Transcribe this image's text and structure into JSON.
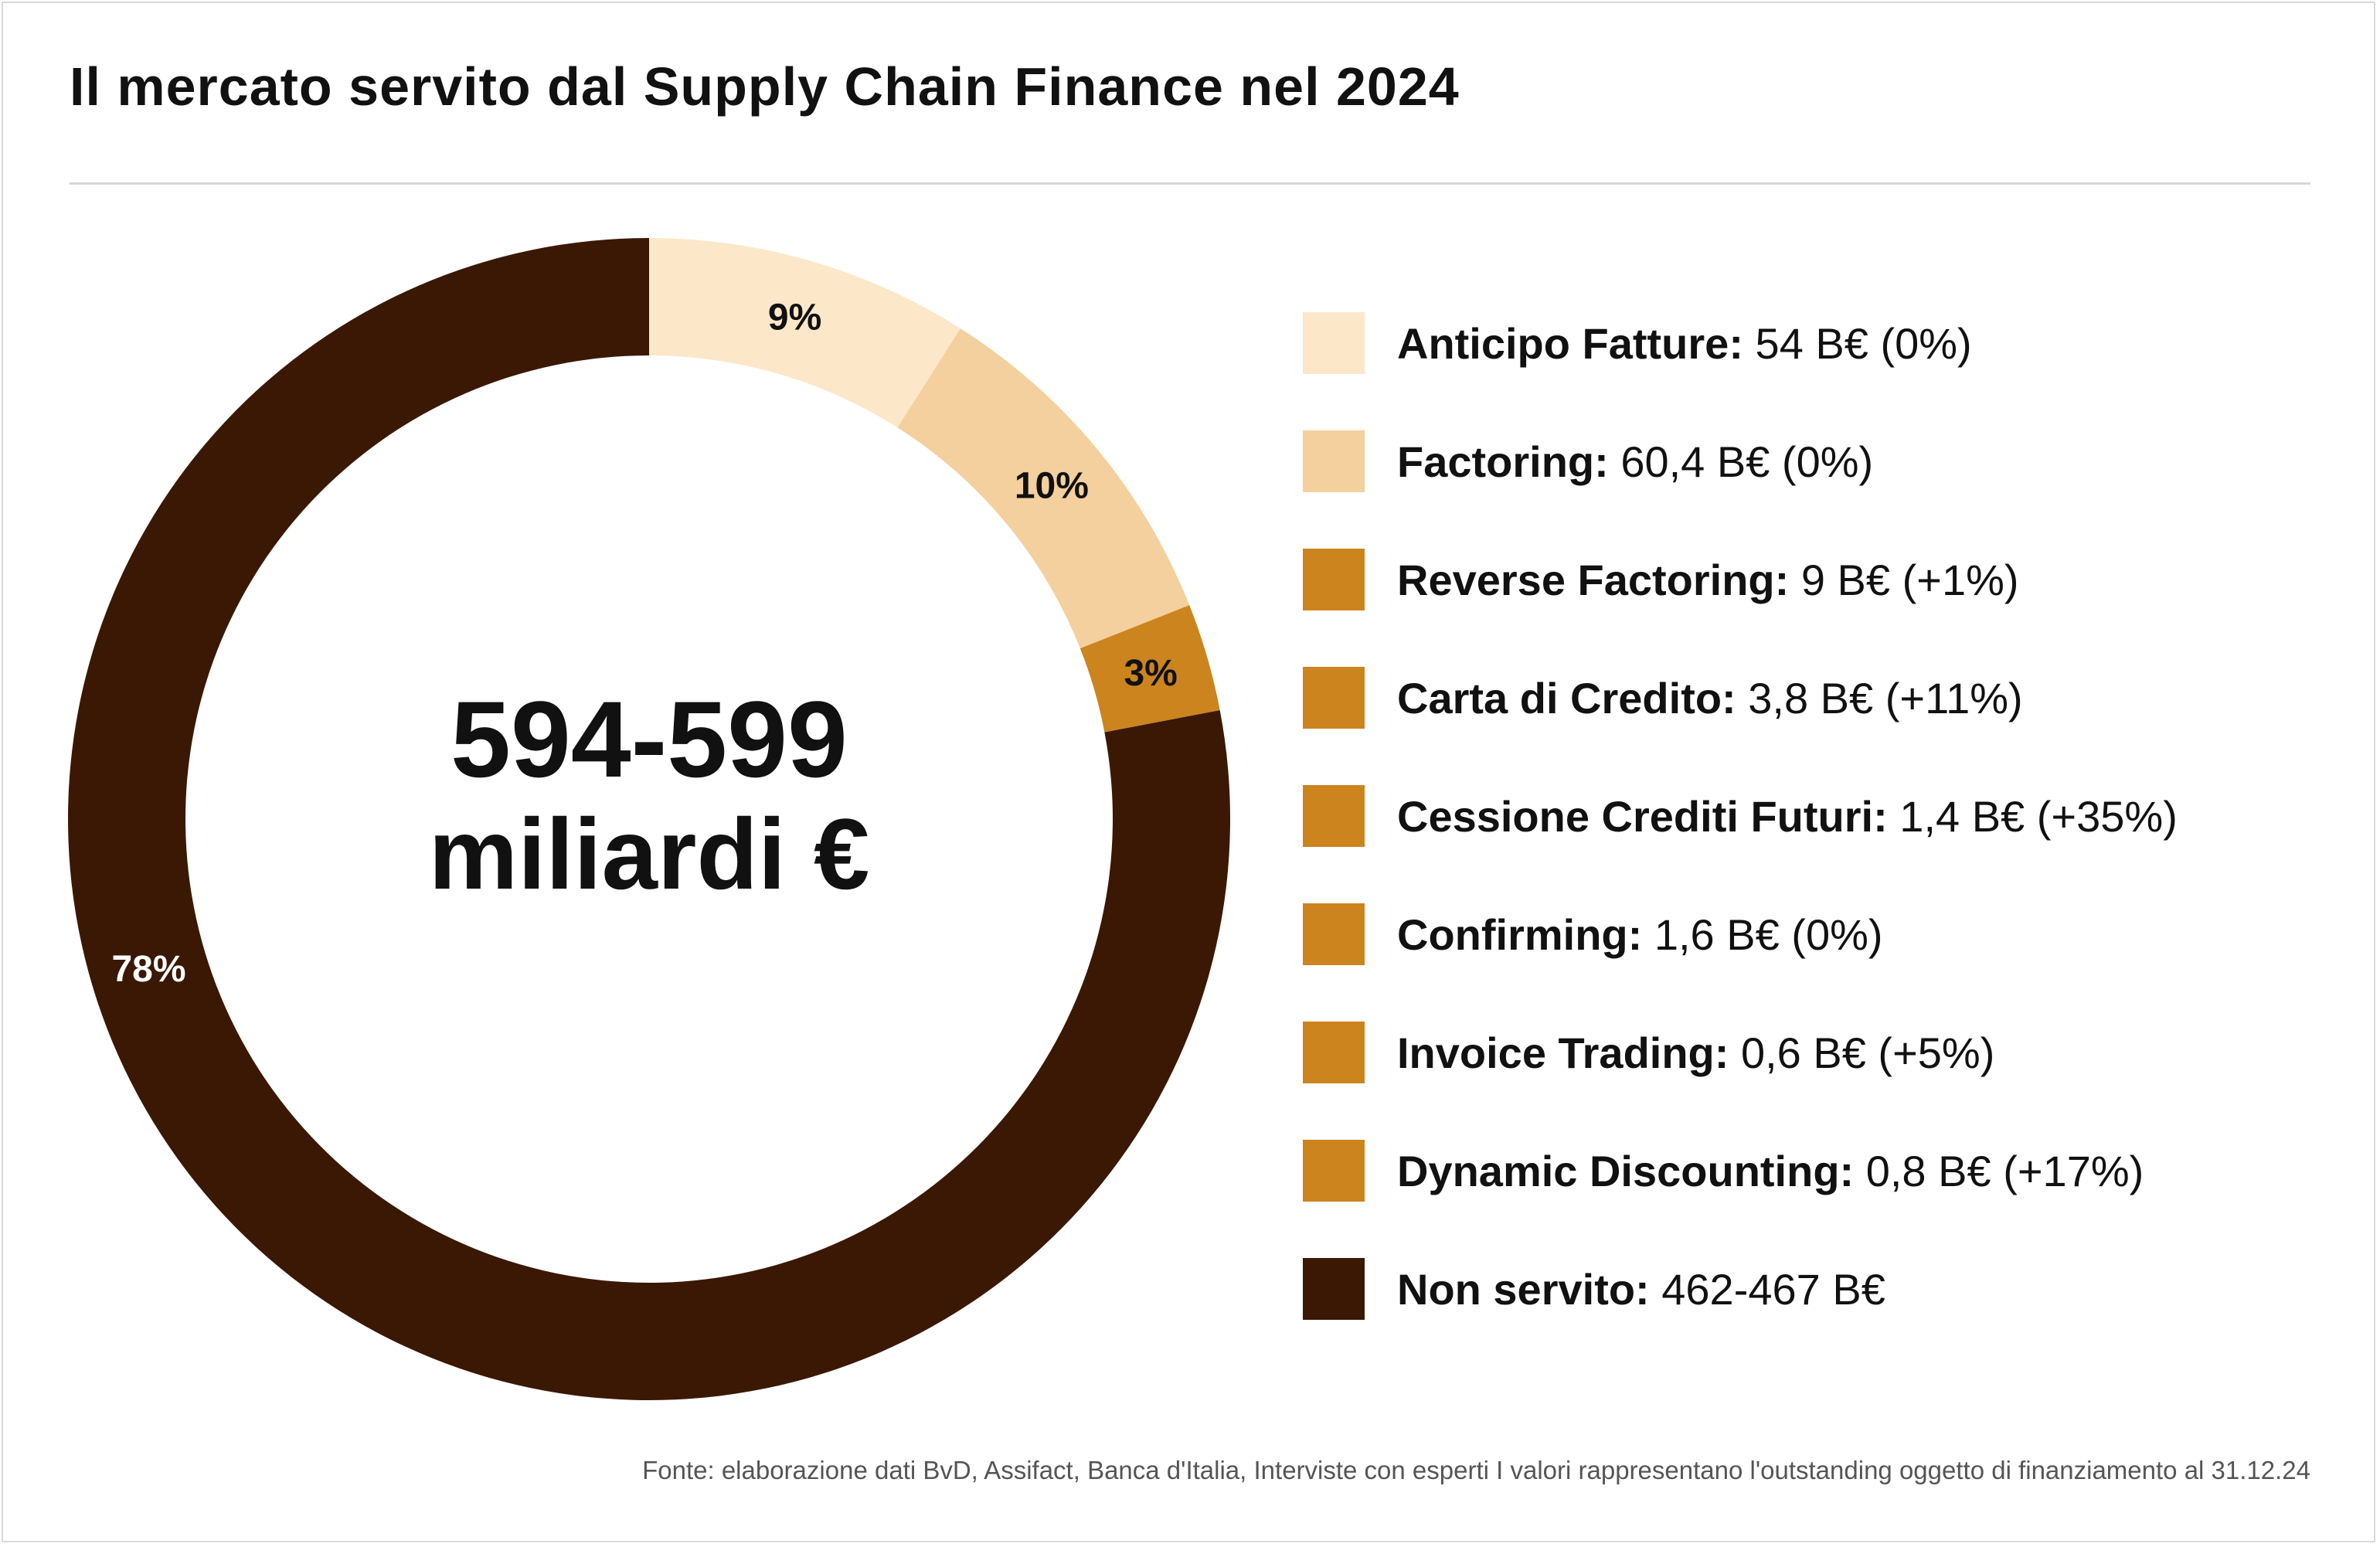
{
  "chart_data": {
    "type": "pie",
    "title": "Il mercato servito dal Supply Chain Finance nel 2024",
    "center_value": "594-599",
    "center_unit": "miliardi €",
    "slices": [
      {
        "label": "9%",
        "percent": 9,
        "color": "#fce7c9"
      },
      {
        "label": "10%",
        "percent": 10,
        "color": "#f3d09d"
      },
      {
        "label": "3%",
        "percent": 3,
        "color": "#cc841e"
      },
      {
        "label": "78%",
        "percent": 78,
        "color": "#3a1804"
      }
    ],
    "legend": [
      {
        "name": "Anticipo Fatture:",
        "value": " 54 B€ (0%)",
        "color": "#fce7c9"
      },
      {
        "name": "Factoring:",
        "value": " 60,4 B€ (0%)",
        "color": "#f3d09d"
      },
      {
        "name": "Reverse Factoring:",
        "value": " 9 B€ (+1%)",
        "color": "#cc841e"
      },
      {
        "name": "Carta di Credito:",
        "value": " 3,8 B€ (+11%)",
        "color": "#cc841e"
      },
      {
        "name": "Cessione Crediti Futuri:",
        "value": " 1,4 B€ (+35%)",
        "color": "#cc841e"
      },
      {
        "name": "Confirming:",
        "value": " 1,6 B€ (0%)",
        "color": "#cc841e"
      },
      {
        "name": "Invoice Trading:",
        "value": " 0,6 B€ (+5%)",
        "color": "#cc841e"
      },
      {
        "name": "Dynamic Discounting:",
        "value": " 0,8 B€ (+17%)",
        "color": "#cc841e"
      },
      {
        "name": "Non servito:",
        "value": " 462-467 B€",
        "color": "#3a1804"
      }
    ],
    "legend_placement": "right",
    "source": "Fonte: elaborazione dati BvD, Assifact, Banca d'Italia, Interviste con esperti I valori rappresentano l'outstanding oggetto di finanziamento al 31.12.24"
  }
}
